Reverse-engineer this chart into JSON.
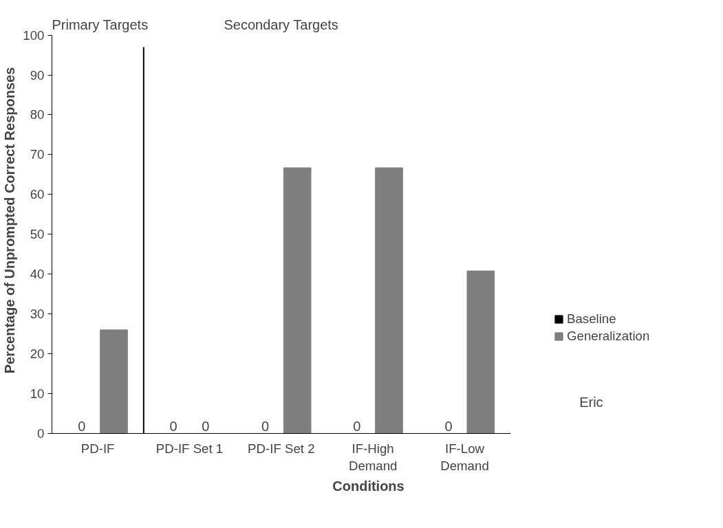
{
  "chart_data": {
    "type": "bar",
    "categories": [
      "PD-IF",
      "PD-IF Set 1",
      "PD-IF Set 2",
      "IF-High Demand",
      "IF-Low Demand"
    ],
    "series": [
      {
        "name": "Baseline",
        "color": "#000000",
        "values": [
          0,
          0,
          0,
          0,
          0
        ],
        "value_labels": [
          "0",
          "0",
          "0",
          "0",
          "0"
        ]
      },
      {
        "name": "Generalization",
        "color": "#7f7f7f",
        "values": [
          26,
          0,
          66.7,
          66.7,
          40.8
        ],
        "value_labels": [
          null,
          "0",
          null,
          null,
          null
        ]
      }
    ],
    "xlabel": "Conditions",
    "ylabel": "Percentage of Unprompted Correct Responses",
    "ylim": [
      0,
      100
    ],
    "yticks": [
      0,
      10,
      20,
      30,
      40,
      50,
      60,
      70,
      80,
      90,
      100
    ],
    "annotations": [
      "Primary Targets",
      "Secondary Targets",
      "Eric"
    ],
    "grid": false,
    "legend": "right"
  }
}
